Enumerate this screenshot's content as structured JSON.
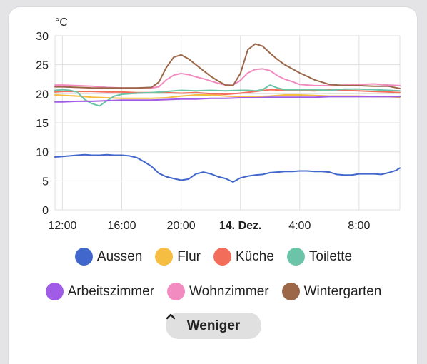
{
  "chart_data": {
    "type": "line",
    "ylabel": "°C",
    "ylim": [
      0,
      30
    ],
    "yticks": [
      0,
      5,
      10,
      15,
      20,
      25,
      30
    ],
    "xlim": [
      11.5,
      34.75
    ],
    "xticks": [
      {
        "x": 12,
        "label": "12:00",
        "bold": false
      },
      {
        "x": 16,
        "label": "16:00",
        "bold": false
      },
      {
        "x": 20,
        "label": "20:00",
        "bold": false
      },
      {
        "x": 24,
        "label": "14. Dez.",
        "bold": true
      },
      {
        "x": 28,
        "label": "4:00",
        "bold": false
      },
      {
        "x": 32,
        "label": "8:00",
        "bold": false
      }
    ],
    "grid": true,
    "legend_placement": "bottom",
    "series": [
      {
        "name": "Aussen",
        "color": "#4267cc",
        "x": [
          11.5,
          12,
          12.5,
          13,
          13.5,
          14,
          14.5,
          15,
          15.5,
          16,
          16.5,
          17,
          17.5,
          18,
          18.5,
          19,
          19.5,
          20,
          20.5,
          21,
          21.5,
          22,
          22.5,
          23,
          23.5,
          24,
          24.5,
          25,
          25.5,
          26,
          26.5,
          27,
          27.5,
          28,
          28.5,
          29,
          29.5,
          30,
          30.5,
          31,
          31.5,
          32,
          32.5,
          33,
          33.5,
          34,
          34.5,
          34.75
        ],
        "y": [
          9.1,
          9.2,
          9.3,
          9.4,
          9.5,
          9.4,
          9.4,
          9.5,
          9.4,
          9.4,
          9.3,
          9.0,
          8.3,
          7.5,
          6.3,
          5.7,
          5.4,
          5.1,
          5.3,
          6.2,
          6.5,
          6.2,
          5.7,
          5.4,
          4.8,
          5.5,
          5.8,
          6.0,
          6.1,
          6.4,
          6.5,
          6.6,
          6.6,
          6.7,
          6.7,
          6.6,
          6.6,
          6.5,
          6.1,
          6.0,
          6.0,
          6.2,
          6.2,
          6.2,
          6.1,
          6.4,
          6.8,
          7.2
        ]
      },
      {
        "name": "Flur",
        "color": "#f5bd42",
        "x": [
          11.5,
          13,
          14,
          15,
          16,
          17,
          18,
          19,
          20,
          21,
          22,
          23,
          24,
          25,
          26,
          27,
          28,
          29,
          30,
          31,
          32,
          33,
          34,
          34.75
        ],
        "y": [
          19.8,
          19.6,
          19.4,
          19.3,
          19.2,
          19.2,
          19.2,
          19.3,
          19.6,
          19.8,
          19.8,
          19.6,
          19.5,
          19.5,
          19.6,
          19.8,
          19.8,
          19.7,
          19.6,
          19.6,
          19.6,
          19.5,
          19.5,
          19.4
        ]
      },
      {
        "name": "Küche",
        "color": "#f26e5b",
        "x": [
          11.5,
          12,
          13,
          14,
          15,
          16,
          17,
          18,
          19,
          20,
          21,
          22,
          23,
          24,
          25,
          26,
          27,
          28,
          29,
          30,
          31,
          32,
          33,
          34,
          34.75
        ],
        "y": [
          20.3,
          20.4,
          20.4,
          20.4,
          20.3,
          20.3,
          20.2,
          20.2,
          20.2,
          20.1,
          20.2,
          20.0,
          19.9,
          20.1,
          20.4,
          20.7,
          20.6,
          20.6,
          20.5,
          20.7,
          20.6,
          20.5,
          20.4,
          20.3,
          20.2
        ]
      },
      {
        "name": "Toilette",
        "color": "#6cc4a8",
        "x": [
          11.5,
          12,
          12.5,
          13,
          13.5,
          14,
          14.5,
          15,
          15.5,
          16,
          17,
          18,
          19,
          20,
          21,
          22,
          23,
          24,
          24.5,
          25,
          25.5,
          26,
          26.5,
          27,
          28,
          29,
          30,
          31,
          32,
          33,
          34,
          34.75
        ],
        "y": [
          20.6,
          20.7,
          20.6,
          20.3,
          19.0,
          18.3,
          17.9,
          18.8,
          19.6,
          19.9,
          20.1,
          20.2,
          20.4,
          20.6,
          20.5,
          20.6,
          20.5,
          20.6,
          20.6,
          20.5,
          20.7,
          21.5,
          21.0,
          20.7,
          20.7,
          20.7,
          20.6,
          20.8,
          20.8,
          20.7,
          20.6,
          20.5
        ]
      },
      {
        "name": "Arbeitszimmer",
        "color": "#a05ce6",
        "x": [
          11.5,
          12,
          13,
          14,
          15,
          16,
          17,
          18,
          19,
          20,
          21,
          22,
          23,
          24,
          25,
          26,
          27,
          28,
          29,
          30,
          31,
          32,
          33,
          34,
          34.75
        ],
        "y": [
          18.6,
          18.6,
          18.7,
          18.7,
          18.8,
          18.9,
          18.9,
          18.9,
          19.0,
          19.1,
          19.1,
          19.2,
          19.2,
          19.3,
          19.3,
          19.4,
          19.4,
          19.4,
          19.4,
          19.5,
          19.5,
          19.5,
          19.5,
          19.5,
          19.5
        ]
      },
      {
        "name": "Wohnzimmer",
        "color": "#f28cc0",
        "x": [
          11.5,
          12,
          13,
          14,
          15,
          16,
          17,
          18,
          18.5,
          19,
          19.5,
          20,
          20.5,
          21,
          21.5,
          22,
          22.5,
          23,
          23.5,
          24,
          24.5,
          25,
          25.5,
          26,
          26.5,
          27,
          27.5,
          28,
          29,
          30,
          31,
          32,
          33,
          34,
          34.75
        ],
        "y": [
          21.5,
          21.5,
          21.4,
          21.3,
          21.1,
          21.0,
          21.0,
          21.0,
          21.2,
          22.4,
          23.2,
          23.5,
          23.3,
          22.9,
          22.6,
          22.2,
          21.8,
          21.5,
          21.5,
          22.3,
          23.6,
          24.2,
          24.3,
          24.0,
          23.1,
          22.5,
          22.1,
          21.6,
          21.4,
          21.4,
          21.5,
          21.6,
          21.7,
          21.5,
          21.4
        ]
      },
      {
        "name": "Wintergarten",
        "color": "#9c6748",
        "x": [
          11.5,
          12,
          13,
          14,
          15,
          16,
          17,
          18,
          18.5,
          19,
          19.5,
          20,
          20.5,
          21,
          21.5,
          22,
          22.5,
          23,
          23.5,
          24,
          24.5,
          25,
          25.5,
          26,
          26.5,
          27,
          27.5,
          28,
          28.5,
          29,
          29.5,
          30,
          31,
          32,
          33,
          34,
          34.75
        ],
        "y": [
          21.2,
          21.2,
          21.1,
          21.0,
          21.0,
          21.0,
          21.0,
          21.1,
          22.0,
          24.5,
          26.3,
          26.7,
          26.0,
          25.0,
          24.0,
          23.0,
          22.2,
          21.5,
          21.4,
          23.5,
          27.6,
          28.6,
          28.2,
          27.0,
          25.9,
          25.0,
          24.3,
          23.6,
          23.0,
          22.4,
          22.0,
          21.6,
          21.4,
          21.4,
          21.3,
          21.3,
          20.9
        ]
      }
    ]
  },
  "toggle_label": "Weniger"
}
